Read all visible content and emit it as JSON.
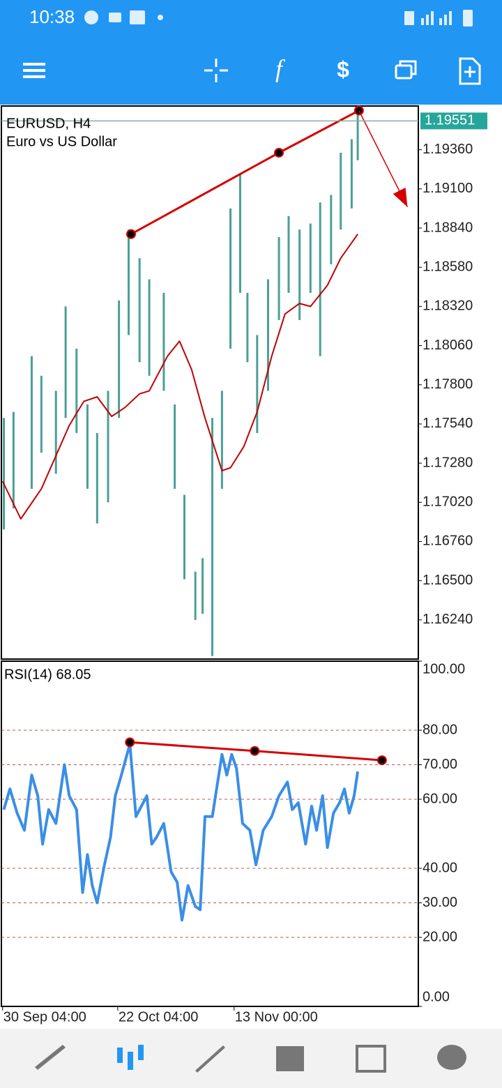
{
  "status_bar": {
    "time": "10:38"
  },
  "chart_data": [
    {
      "type": "candlestick",
      "title": "EURUSD, H4",
      "subtitle": "Euro vs US Dollar",
      "x": [
        2,
        10,
        25,
        33,
        45,
        53,
        62,
        71,
        79,
        88,
        97,
        105,
        114,
        122,
        134,
        143,
        151,
        160,
        166,
        174,
        182,
        189,
        197,
        203,
        211,
        220,
        229,
        237,
        246,
        255,
        263,
        272,
        280,
        289,
        294
      ],
      "high": [
        1.1758,
        1.1762,
        1.1799,
        1.1786,
        1.1776,
        1.1832,
        1.1804,
        1.1767,
        1.1748,
        1.1776,
        1.1836,
        1.1883,
        1.1864,
        1.185,
        1.1841,
        1.1767,
        1.1707,
        1.1656,
        1.1665,
        1.1758,
        1.1776,
        1.1897,
        1.192,
        1.1841,
        1.1813,
        1.185,
        1.1878,
        1.1892,
        1.1883,
        1.1887,
        1.1901,
        1.1906,
        1.1934,
        1.1943,
        1.1962
      ],
      "low": [
        1.1684,
        1.1698,
        1.1711,
        1.1735,
        1.1721,
        1.1758,
        1.1748,
        1.1711,
        1.1688,
        1.1702,
        1.1758,
        1.1813,
        1.1795,
        1.1786,
        1.1776,
        1.1711,
        1.1651,
        1.1624,
        1.1628,
        1.16,
        1.1711,
        1.1804,
        1.1841,
        1.1795,
        1.1748,
        1.1776,
        1.1823,
        1.1841,
        1.1823,
        1.1841,
        1.1799,
        1.186,
        1.1883,
        1.1897,
        1.1929
      ],
      "color": "#4a9f97",
      "xlim": [
        0,
        344
      ],
      "ylim": [
        1.1598,
        1.1965
      ],
      "yticks": [
        {
          "value": 1.1624,
          "label": "1.16240"
        },
        {
          "value": 1.165,
          "label": "1.16500"
        },
        {
          "value": 1.1676,
          "label": "1.16760"
        },
        {
          "value": 1.1702,
          "label": "1.17020"
        },
        {
          "value": 1.1728,
          "label": "1.17280"
        },
        {
          "value": 1.1754,
          "label": "1.17540"
        },
        {
          "value": 1.178,
          "label": "1.17800"
        },
        {
          "value": 1.1806,
          "label": "1.18060"
        },
        {
          "value": 1.1832,
          "label": "1.18320"
        },
        {
          "value": 1.1858,
          "label": "1.18580"
        },
        {
          "value": 1.1884,
          "label": "1.18840"
        },
        {
          "value": 1.191,
          "label": "1.19100"
        },
        {
          "value": 1.1936,
          "label": "1.19360"
        }
      ],
      "current_price": 1.19551,
      "moving_average": {
        "x": [
          1,
          16,
          33,
          56,
          68,
          79,
          91,
          102,
          114,
          122,
          137,
          147,
          157,
          168,
          182,
          189,
          200,
          211,
          223,
          234,
          246,
          255,
          269,
          280,
          294
        ],
        "values": [
          1.1716,
          1.1691,
          1.1711,
          1.1753,
          1.1769,
          1.1772,
          1.1759,
          1.1765,
          1.1774,
          1.1776,
          1.1799,
          1.1809,
          1.179,
          1.1758,
          1.1723,
          1.1725,
          1.1739,
          1.1762,
          1.1799,
          1.1827,
          1.1834,
          1.1832,
          1.1846,
          1.1864,
          1.188
        ],
        "color": "#c00000"
      },
      "trendline": {
        "x": [
          107,
          229,
          295
        ],
        "values": [
          1.188,
          1.1934,
          1.1962
        ],
        "color": "#d50000"
      },
      "arrow": {
        "x": [
          295,
          335
        ],
        "values": [
          1.1962,
          1.1898
        ],
        "color": "#d50000"
      }
    },
    {
      "type": "line",
      "title": "RSI(14) 68.05",
      "x": [
        2,
        7,
        13,
        19,
        25,
        30,
        34,
        39,
        45,
        52,
        56,
        62,
        67,
        71,
        75,
        79,
        85,
        90,
        94,
        99,
        106,
        111,
        120,
        124,
        128,
        134,
        140,
        145,
        149,
        154,
        160,
        164,
        168,
        174,
        182,
        186,
        190,
        194,
        199,
        205,
        210,
        216,
        223,
        229,
        236,
        240,
        245,
        251,
        256,
        260,
        265,
        269,
        274,
        279,
        283,
        287,
        291,
        294
      ],
      "values": [
        57,
        63,
        56,
        51,
        67,
        61,
        47,
        57,
        53,
        70,
        61,
        57,
        33,
        44,
        35,
        30,
        41,
        49,
        61,
        67,
        76,
        55,
        61,
        47,
        49,
        53,
        39,
        36,
        25,
        35,
        29,
        28,
        55,
        55,
        73,
        67,
        73,
        69,
        53,
        51,
        41,
        51,
        55,
        61,
        65,
        57,
        59,
        47,
        58,
        51,
        61,
        46,
        56,
        59,
        63,
        56,
        61,
        68.05
      ],
      "color": "#3a8ee6",
      "xlim": [
        0,
        344
      ],
      "ylim": [
        0,
        100
      ],
      "yticks": [
        {
          "value": 0,
          "label": "0.00"
        },
        {
          "value": 20,
          "label": "20.00"
        },
        {
          "value": 30,
          "label": "30.00"
        },
        {
          "value": 40,
          "label": "40.00"
        },
        {
          "value": 60,
          "label": "60.00"
        },
        {
          "value": 70,
          "label": "70.00"
        },
        {
          "value": 80,
          "label": "80.00"
        },
        {
          "value": 100,
          "label": "100.00"
        }
      ],
      "xticks": [
        {
          "value": 1,
          "label": "30 Sep 04:00"
        },
        {
          "value": 96,
          "label": "22 Oct 04:00"
        },
        {
          "value": 192,
          "label": "13 Nov 00:00"
        }
      ],
      "grid": true,
      "trendline": {
        "x": [
          106,
          209,
          314
        ],
        "values": [
          76.5,
          74,
          71.3
        ],
        "color": "#d50000"
      }
    }
  ]
}
